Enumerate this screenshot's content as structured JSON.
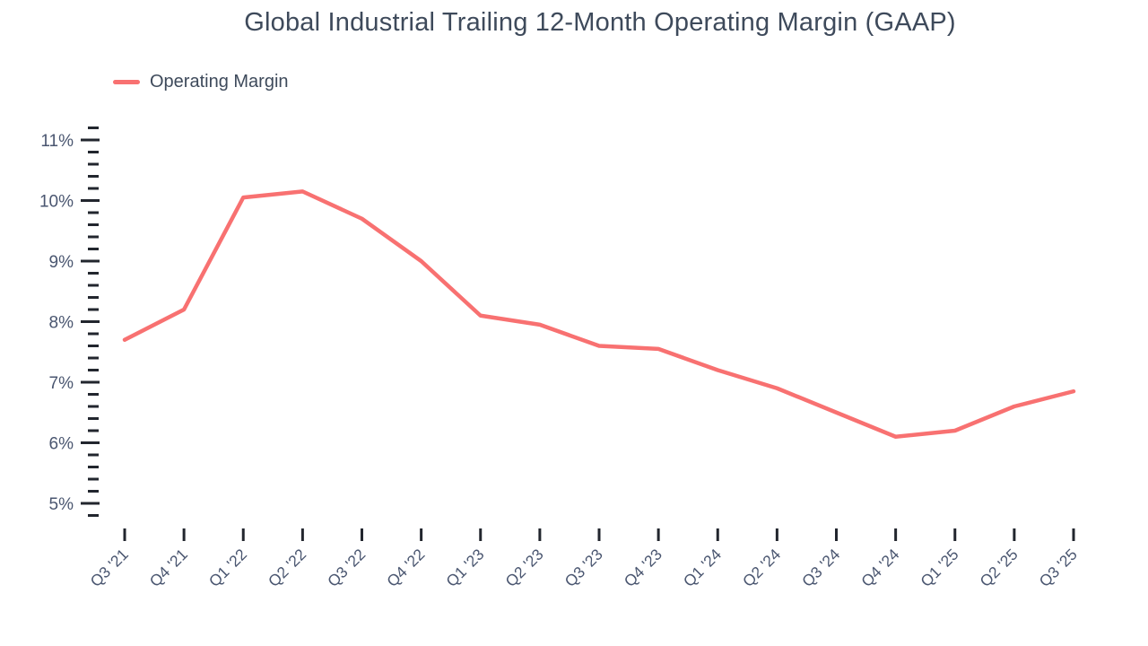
{
  "chart_data": {
    "type": "line",
    "title": "Global Industrial Trailing 12-Month Operating Margin (GAAP)",
    "legend": [
      {
        "label": "Operating Margin",
        "color": "#f87171"
      }
    ],
    "legend_position": "top-left",
    "grid": false,
    "categories": [
      "Q3 '21",
      "Q4 '21",
      "Q1 '22",
      "Q2 '22",
      "Q3 '22",
      "Q4 '22",
      "Q1 '23",
      "Q2 '23",
      "Q3 '23",
      "Q4 '23",
      "Q1 '24",
      "Q2 '24",
      "Q3 '24",
      "Q4 '24",
      "Q1 '25",
      "Q2 '25",
      "Q3 '25"
    ],
    "series": [
      {
        "name": "Operating Margin",
        "values": [
          7.7,
          8.2,
          10.05,
          10.15,
          9.7,
          9.0,
          8.1,
          7.95,
          7.6,
          7.55,
          7.2,
          6.9,
          6.5,
          6.1,
          6.2,
          6.6,
          6.85
        ]
      }
    ],
    "xlabel": "",
    "ylabel": "",
    "y_axis": {
      "unit": "%",
      "range": [
        4.8,
        11.2
      ],
      "major_ticks": [
        5,
        6,
        7,
        8,
        9,
        10,
        11
      ],
      "tick_labels": [
        "5%",
        "6%",
        "7%",
        "8%",
        "9%",
        "10%",
        "11%"
      ],
      "minor_tick_step": 0.2
    },
    "colors": {
      "line": "#f87171",
      "title_text": "#3e4a5b",
      "axis_label_text": "#4a5670",
      "tick_mark": "#22262e",
      "background": "#ffffff"
    }
  }
}
